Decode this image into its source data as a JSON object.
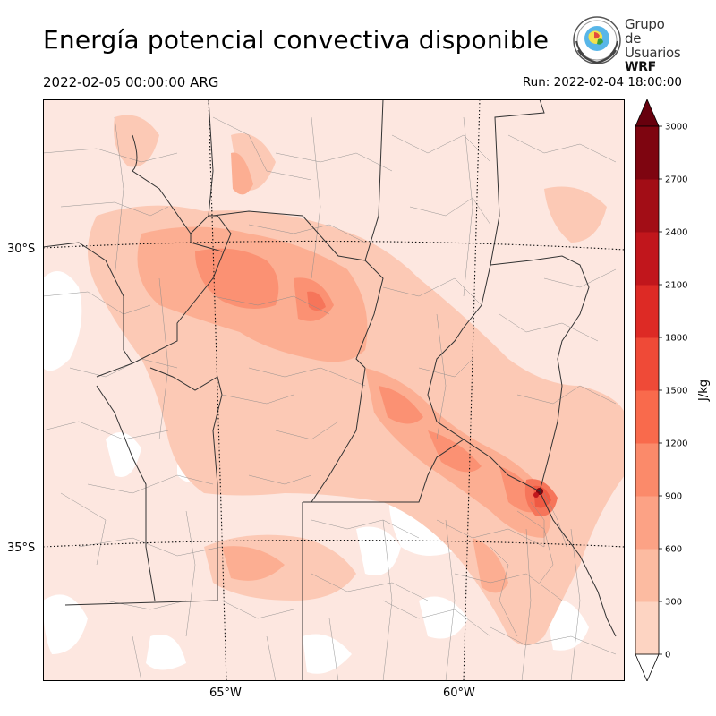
{
  "header": {
    "title": "Energía potencial convectiva disponible",
    "valid_time": "2022-02-05 00:00:00 ARG",
    "run_time": "Run: 2022-02-04 18:00:00"
  },
  "logo": {
    "line1": "Grupo de",
    "line2": "Usuarios",
    "line3": "WRF"
  },
  "map": {
    "latitude_labels": [
      "30°S",
      "35°S"
    ],
    "longitude_labels": [
      "65°W",
      "60°W"
    ],
    "colors": {
      "land_base": "#fde7e0",
      "level_300_600": "#fcc9b5",
      "level_600_900": "#fcae92",
      "level_900_1200": "#fb9173",
      "level_1200_1500": "#f6755a",
      "level_1500_1800": "#ef5a43",
      "level_1800_2100": "#e43a2d",
      "max_core": "#7a0510"
    }
  },
  "colorbar": {
    "label": "J/kg",
    "tick_labels": [
      "0",
      "300",
      "600",
      "900",
      "1200",
      "1500",
      "1800",
      "2100",
      "2400",
      "2700",
      "3000"
    ],
    "colors": [
      "#fee9e2",
      "#fdd4c2",
      "#fcbba1",
      "#fca285",
      "#fb8a6a",
      "#f96a4c",
      "#ef4a37",
      "#dd2a25",
      "#c1161c",
      "#a20d16",
      "#7e0510"
    ],
    "over_color": "#67000d",
    "under_color": "#ffffff"
  }
}
